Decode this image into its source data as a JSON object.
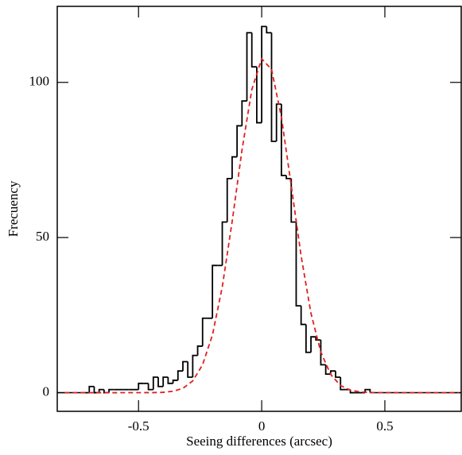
{
  "chart_data": {
    "type": "histogram",
    "xlabel": "Seeing differences (arcsec)",
    "ylabel": "Frecuency",
    "bins": [
      -0.72,
      -0.7,
      -0.68,
      -0.66,
      -0.64,
      -0.62,
      -0.6,
      -0.58,
      -0.56,
      -0.54,
      -0.52,
      -0.5,
      -0.48,
      -0.46,
      -0.44,
      -0.42,
      -0.4,
      -0.38,
      -0.36,
      -0.34,
      -0.32,
      -0.3,
      -0.28,
      -0.26,
      -0.24,
      -0.22,
      -0.2,
      -0.18,
      -0.16,
      -0.14,
      -0.12,
      -0.1,
      -0.08,
      -0.06,
      -0.04,
      -0.02,
      0,
      0.02,
      0.04,
      0.06,
      0.08,
      0.1,
      0.12,
      0.14,
      0.16,
      0.18,
      0.2,
      0.22,
      0.24,
      0.26,
      0.28,
      0.3,
      0.32,
      0.34,
      0.36,
      0.38,
      0.4,
      0.42,
      0.44
    ],
    "values": [
      0,
      2,
      0,
      1,
      0,
      1,
      1,
      1,
      1,
      1,
      1,
      3,
      3,
      1,
      5,
      2,
      5,
      3,
      4,
      7,
      10,
      5,
      12,
      15,
      24,
      24,
      41,
      41,
      55,
      69,
      76,
      86,
      94,
      116,
      105,
      87,
      118,
      116,
      81,
      93,
      70,
      69,
      55,
      28,
      22,
      13,
      18,
      17,
      9,
      6,
      7,
      5,
      1,
      1,
      0,
      0,
      0,
      1
    ],
    "color": "#000000",
    "fit": {
      "type": "line",
      "color": "#e02020",
      "x": [
        -0.8,
        -0.6,
        -0.44,
        -0.4,
        -0.36,
        -0.32,
        -0.28,
        -0.24,
        -0.2,
        -0.16,
        -0.12,
        -0.08,
        -0.04,
        0,
        0.04,
        0.08,
        0.12,
        0.16,
        0.2,
        0.24,
        0.28,
        0.32,
        0.36,
        0.4,
        0.44,
        0.6,
        0.8
      ],
      "values": [
        0,
        0,
        0.03,
        0.13,
        0.46,
        1.4,
        3.8,
        9.0,
        18.6,
        34.1,
        55.1,
        78.2,
        97.7,
        107.6,
        104.2,
        88.8,
        66.7,
        44.1,
        25.6,
        13.1,
        5.9,
        2.3,
        0.8,
        0.25,
        0.06,
        0,
        0
      ]
    },
    "xlim": [
      -0.83,
      0.81
    ],
    "ylim": [
      -6,
      124.5
    ],
    "xticks": [
      -0.5,
      0,
      0.5
    ],
    "yticks": [
      0,
      50,
      100
    ]
  }
}
